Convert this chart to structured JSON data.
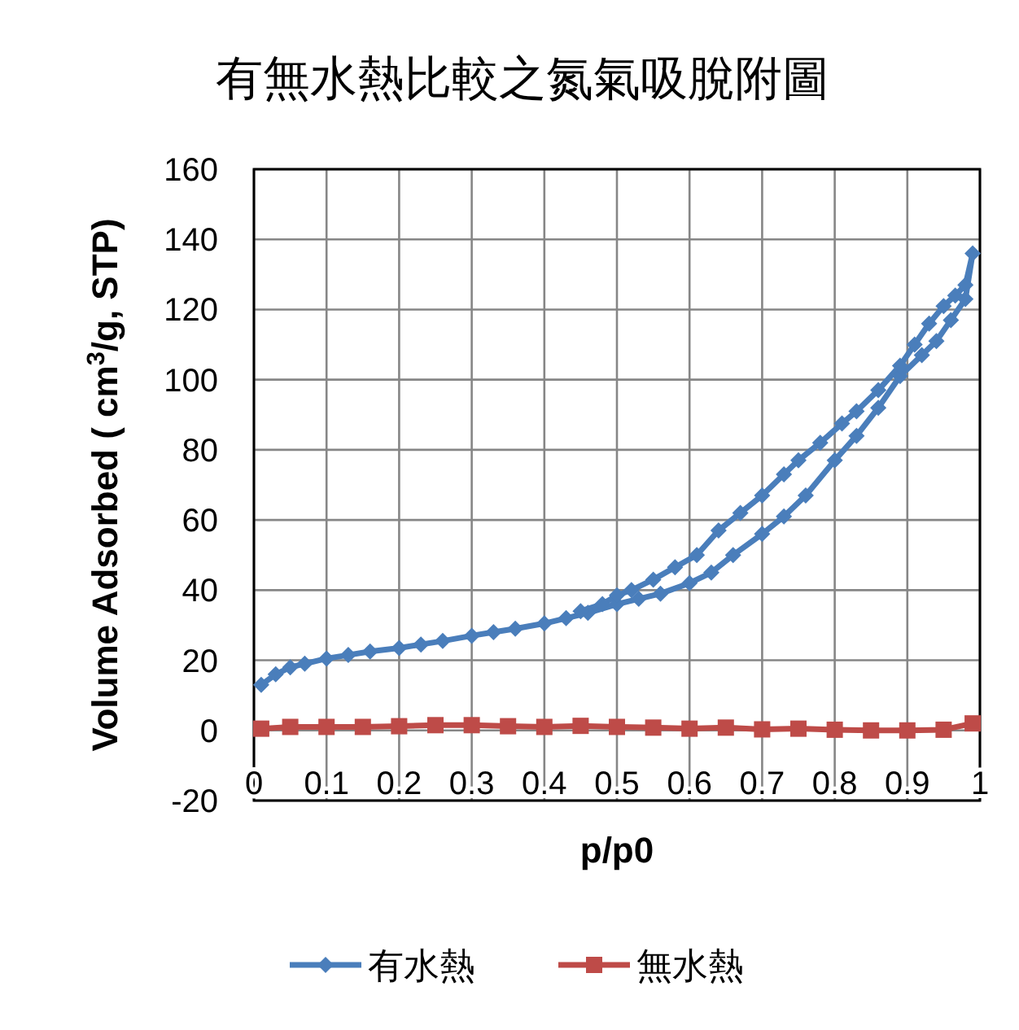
{
  "chart_data": {
    "type": "line",
    "title": "有無水熱比較之氮氣吸脫附圖",
    "xlabel": "p/p0",
    "ylabel": "Volume  Adsorbed ( cm$^{3}$/g, STP)",
    "xlim": [
      0,
      1
    ],
    "xticks": [
      0,
      0.1,
      0.2,
      0.3,
      0.4,
      0.5,
      0.6,
      0.7,
      0.8,
      0.9,
      1
    ],
    "ylim": [
      -20,
      160
    ],
    "yticks": [
      -20,
      0,
      20,
      40,
      60,
      80,
      100,
      120,
      140,
      160
    ],
    "grid": true,
    "legend": "bottom",
    "line_style": "solid",
    "series": [
      {
        "name": "有水熱",
        "color": "#4a7ebb",
        "marker": "diamond",
        "x": [
          0.01,
          0.03,
          0.05,
          0.07,
          0.1,
          0.13,
          0.16,
          0.2,
          0.23,
          0.26,
          0.3,
          0.33,
          0.36,
          0.4,
          0.43,
          0.46,
          0.5,
          0.53,
          0.56,
          0.6,
          0.63,
          0.66,
          0.7,
          0.73,
          0.76,
          0.8,
          0.83,
          0.86,
          0.89,
          0.92,
          0.94,
          0.96,
          0.98,
          0.99,
          0.98,
          0.966,
          0.95,
          0.93,
          0.91,
          0.89,
          0.86,
          0.83,
          0.81,
          0.78,
          0.75,
          0.73,
          0.7,
          0.67,
          0.64,
          0.61,
          0.58,
          0.55,
          0.52,
          0.5,
          0.48,
          0.45
        ],
        "values": [
          13,
          16,
          18,
          19,
          20.5,
          21.5,
          22.5,
          23.5,
          24.5,
          25.5,
          27,
          28,
          29,
          30.5,
          32,
          33.5,
          36,
          37.5,
          39,
          42,
          45,
          50,
          56,
          61,
          67,
          77,
          84,
          92,
          101,
          107,
          111,
          117,
          123,
          136,
          127,
          124,
          121,
          116,
          110,
          104,
          97,
          91,
          87.5,
          82,
          77,
          73,
          67,
          62,
          57,
          50,
          46.5,
          43,
          40,
          38.5,
          36,
          34
        ]
      },
      {
        "name": "無水熱",
        "color": "#be4b48",
        "marker": "square",
        "x": [
          0.01,
          0.05,
          0.1,
          0.15,
          0.2,
          0.25,
          0.3,
          0.35,
          0.4,
          0.45,
          0.5,
          0.55,
          0.6,
          0.65,
          0.7,
          0.75,
          0.8,
          0.85,
          0.9,
          0.95,
          0.99
        ],
        "values": [
          0.5,
          1,
          1,
          1,
          1.2,
          1.5,
          1.5,
          1.2,
          1,
          1.3,
          1,
          0.8,
          0.5,
          0.8,
          0.3,
          0.5,
          0.2,
          0,
          0,
          0.2,
          2
        ]
      }
    ]
  }
}
